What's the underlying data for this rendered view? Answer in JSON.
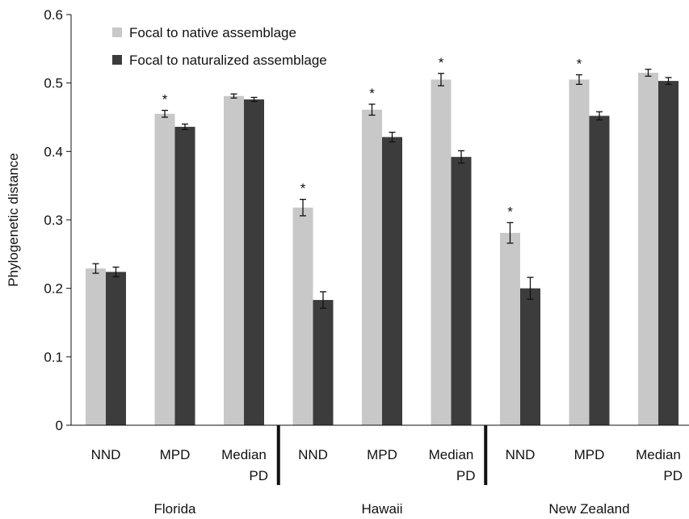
{
  "chart_data": {
    "type": "bar",
    "ylabel": "Phylogenetic distance",
    "ylim": [
      0,
      0.6
    ],
    "yticks": [
      "0",
      "0.1",
      "0.2",
      "0.3",
      "0.4",
      "0.5",
      "0.6"
    ],
    "colors": {
      "native": "#c8c8c8",
      "naturalized": "#3c3c3c",
      "axis": "#111111"
    },
    "series": [
      {
        "name": "Focal to native assemblage",
        "key": "native"
      },
      {
        "name": "Focal to naturalized assemblage",
        "key": "naturalized"
      }
    ],
    "groups": [
      {
        "name": "Florida",
        "categories": [
          {
            "label": [
              "NND"
            ],
            "native": 0.229,
            "native_err": 0.007,
            "naturalized": 0.224,
            "naturalized_err": 0.007,
            "star": ""
          },
          {
            "label": [
              "MPD"
            ],
            "native": 0.455,
            "native_err": 0.005,
            "naturalized": 0.436,
            "naturalized_err": 0.004,
            "star": "*"
          },
          {
            "label": [
              "Median",
              "PD"
            ],
            "native": 0.481,
            "native_err": 0.003,
            "naturalized": 0.476,
            "naturalized_err": 0.003,
            "star": ""
          }
        ]
      },
      {
        "name": "Hawaii",
        "categories": [
          {
            "label": [
              "NND"
            ],
            "native": 0.318,
            "native_err": 0.012,
            "naturalized": 0.183,
            "naturalized_err": 0.012,
            "star": "*"
          },
          {
            "label": [
              "MPD"
            ],
            "native": 0.461,
            "native_err": 0.008,
            "naturalized": 0.421,
            "naturalized_err": 0.007,
            "star": "*"
          },
          {
            "label": [
              "Median",
              "PD"
            ],
            "native": 0.505,
            "native_err": 0.009,
            "naturalized": 0.392,
            "naturalized_err": 0.009,
            "star": "*"
          }
        ]
      },
      {
        "name": "New Zealand",
        "categories": [
          {
            "label": [
              "NND"
            ],
            "native": 0.281,
            "native_err": 0.015,
            "naturalized": 0.2,
            "naturalized_err": 0.016,
            "star": "*"
          },
          {
            "label": [
              "MPD"
            ],
            "native": 0.505,
            "native_err": 0.007,
            "naturalized": 0.452,
            "naturalized_err": 0.006,
            "star": "*"
          },
          {
            "label": [
              "Median",
              "PD"
            ],
            "native": 0.515,
            "native_err": 0.005,
            "naturalized": 0.503,
            "naturalized_err": 0.005,
            "star": ""
          }
        ]
      }
    ]
  }
}
